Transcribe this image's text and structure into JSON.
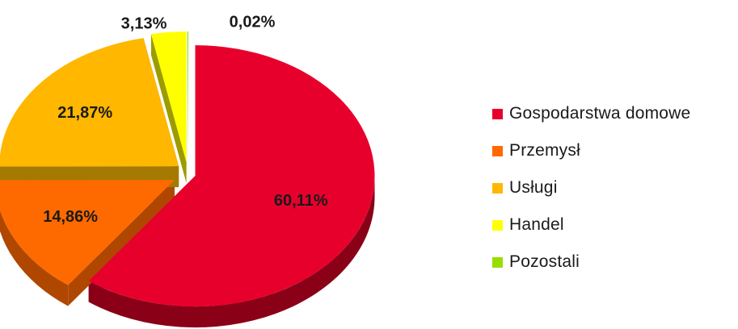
{
  "chart_data": {
    "type": "pie",
    "title": "",
    "slices": [
      {
        "label": "Gospodarstwa domowe",
        "value": 60.11,
        "value_label": "60,11%",
        "color": "#E8002D",
        "side_color": "#8A0017"
      },
      {
        "label": "Przemysł",
        "value": 14.86,
        "value_label": "14,86%",
        "color": "#FF6A00",
        "side_color": "#B04700"
      },
      {
        "label": "Usługi",
        "value": 21.87,
        "value_label": "21,87%",
        "color": "#FFB700",
        "side_color": "#A57A00"
      },
      {
        "label": "Handel",
        "value": 3.13,
        "value_label": "3,13%",
        "color": "#FFFF00",
        "side_color": "#9C9C00"
      },
      {
        "label": "Pozostali",
        "value": 0.02,
        "value_label": "0,02%",
        "color": "#99DD00",
        "side_color": "#5C8500"
      }
    ],
    "legend_position": "right",
    "style": "3d-exploded"
  }
}
